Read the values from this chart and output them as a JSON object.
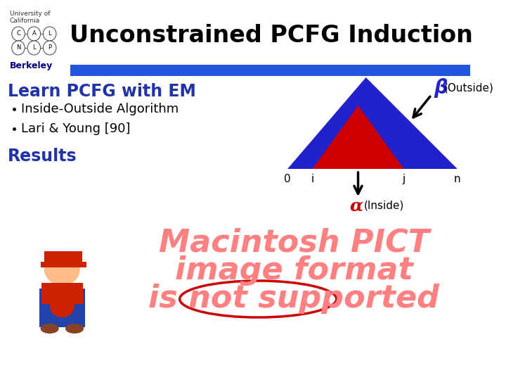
{
  "title": "Unconstrained PCFG Induction",
  "title_fontsize": 24,
  "title_color": "#000000",
  "header_bar_color": "#2255DD",
  "learn_text": "Learn PCFG with EM",
  "learn_color": "#2233AA",
  "learn_fontsize": 17,
  "bullets": [
    "Inside-Outside Algorithm",
    "Lari & Young [90]"
  ],
  "bullet_color": "#000000",
  "bullet_fontsize": 13,
  "results_text": "Results",
  "results_color": "#2233AA",
  "results_fontsize": 17,
  "outside_triangle_color": "#2222CC",
  "inside_triangle_color": "#CC0000",
  "beta_label": "β",
  "beta_color": "#2222CC",
  "outside_label": "(Outside)",
  "alpha_label": "α",
  "alpha_color": "#CC0000",
  "inside_label": "(Inside)",
  "axis_labels": [
    "0",
    "i",
    "j",
    "n"
  ],
  "axis_label_color": "#000000",
  "macintosh_lines": [
    "Macintosh PICT",
    "image format",
    "is not supported"
  ],
  "macintosh_color": "#FF8080",
  "macintosh_fontsize": 32,
  "background_color": "#FFFFFF",
  "logo_text1": "University of",
  "logo_text2": "California",
  "logo_text3": "Berkeley"
}
